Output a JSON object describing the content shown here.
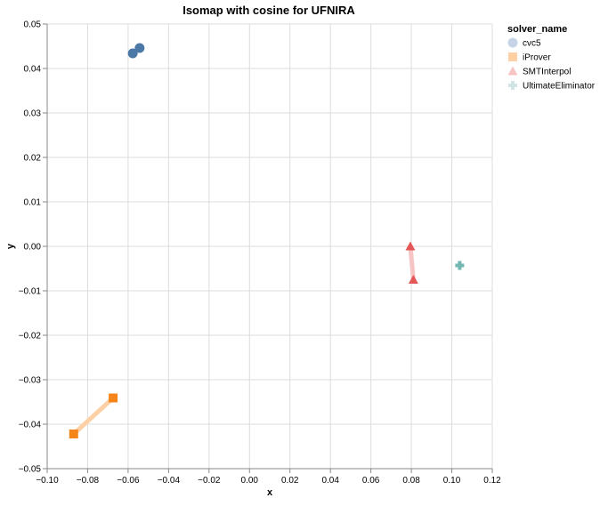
{
  "chart_data": {
    "type": "scatter",
    "title": "Isomap with cosine for UFNIRA",
    "xlabel": "x",
    "ylabel": "y",
    "xlim": [
      -0.1,
      0.12
    ],
    "ylim": [
      -0.05,
      0.05
    ],
    "x_ticks": [
      "−0.10",
      "−0.08",
      "−0.06",
      "−0.04",
      "−0.02",
      "0.00",
      "0.02",
      "0.04",
      "0.06",
      "0.08",
      "0.10",
      "0.12"
    ],
    "y_ticks": [
      "0.05",
      "0.04",
      "0.03",
      "0.02",
      "0.01",
      "0.00",
      "−0.01",
      "−0.02",
      "−0.03",
      "−0.04",
      "−0.05"
    ],
    "grid": true,
    "legend_title": "solver_name",
    "legend_position": "right",
    "series": [
      {
        "name": "cvc5",
        "shape": "circle",
        "color": "#4c78a8",
        "light_color": "#c5d4e6",
        "points": [
          {
            "x": -0.0577,
            "y": 0.0434
          },
          {
            "x": -0.0543,
            "y": 0.0446
          }
        ]
      },
      {
        "name": "iProver",
        "shape": "square",
        "color": "#f58518",
        "light_color": "#fdd1a5",
        "points": [
          {
            "x": -0.0869,
            "y": -0.0422
          },
          {
            "x": -0.0674,
            "y": -0.0341
          }
        ]
      },
      {
        "name": "SMTInterpol",
        "shape": "triangle",
        "color": "#e45756",
        "light_color": "#f6c4c3",
        "points": [
          {
            "x": 0.0795,
            "y": 0.0
          },
          {
            "x": 0.081,
            "y": -0.0075
          }
        ]
      },
      {
        "name": "UltimateEliminator",
        "shape": "cross",
        "color": "#72b7b2",
        "light_color": "#cfe6e4",
        "points": [
          {
            "x": 0.1039,
            "y": -0.0043
          }
        ]
      }
    ]
  }
}
